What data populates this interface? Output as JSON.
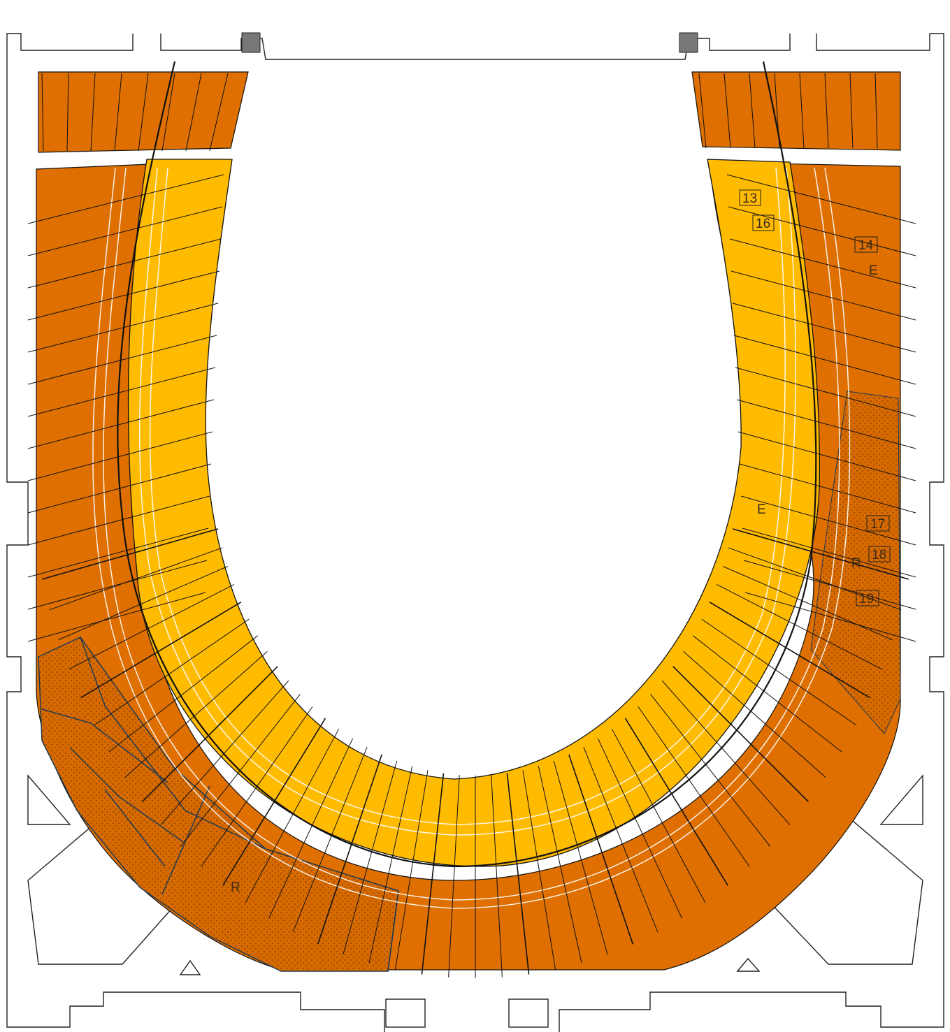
{
  "plan": {
    "colors": {
      "outer_ring": "#de6f00",
      "inner_ring": "#ffbb00",
      "dotted_zone": "#d66a00",
      "stroke": "#111111",
      "structure": "#ffffff",
      "wall": "#222222",
      "pillar": "#777777",
      "zone_outline": "#1e3a55"
    },
    "labels": {
      "box_13": "13",
      "box_16": "16",
      "box_14": "14",
      "box_17": "17",
      "box_18": "18",
      "box_19": "19",
      "zone_e_upper": "E",
      "zone_e_lower": "E",
      "zone_r_right": "R",
      "zone_r_left": "R"
    }
  }
}
